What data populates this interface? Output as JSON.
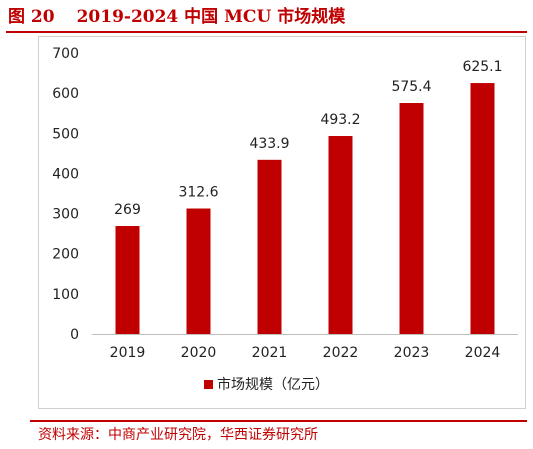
{
  "figure": {
    "number": "图 20",
    "title": "2019-2024 中国 MCU 市场规模",
    "source": "资料来源：中商产业研究院，华西证券研究所"
  },
  "chart_data": {
    "type": "bar",
    "categories": [
      "2019",
      "2020",
      "2021",
      "2022",
      "2023",
      "2024"
    ],
    "series": [
      {
        "name": "市场规模（亿元）",
        "values": [
          269,
          312.6,
          433.9,
          493.2,
          575.4,
          625.1
        ],
        "color": "#c00000"
      }
    ],
    "data_labels": [
      "269",
      "312.6",
      "433.9",
      "493.2",
      "575.4",
      "625.1"
    ],
    "y_ticks": [
      "0",
      "100",
      "200",
      "300",
      "400",
      "500",
      "600",
      "700"
    ],
    "ylim": [
      0,
      700
    ],
    "grid": false,
    "legend_position": "bottom"
  }
}
